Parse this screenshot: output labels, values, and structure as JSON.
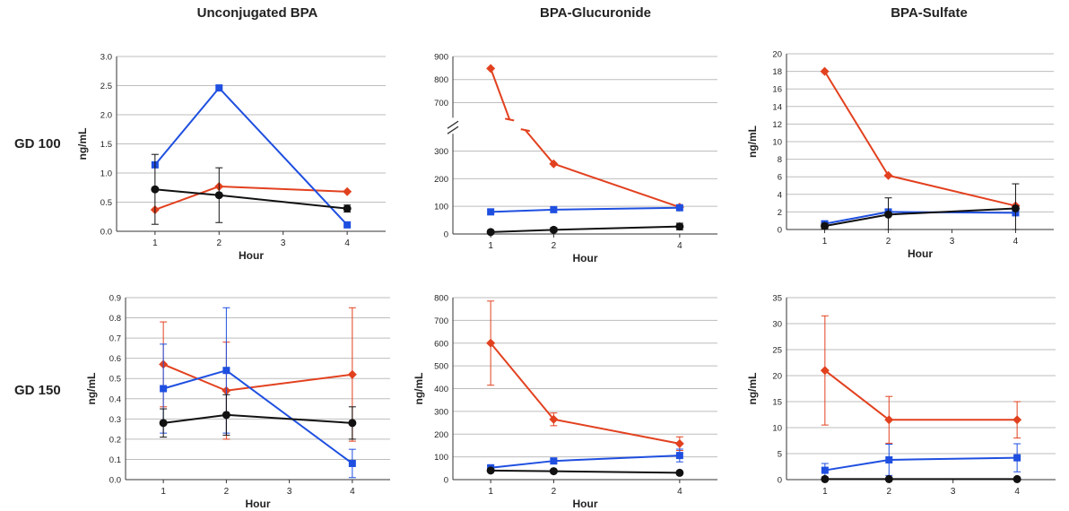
{
  "column_titles": [
    "Unconjugated BPA",
    "BPA-Glucuronide",
    "BPA-Sulfate"
  ],
  "row_labels": [
    "GD 100",
    "GD 150"
  ],
  "colors": {
    "red": "#e2411f",
    "blue": "#1f4fe0",
    "black": "#111111"
  },
  "chart_data": [
    {
      "type": "line",
      "title": "Unconjugated BPA",
      "row": "GD 100",
      "xlabel": "Hour",
      "ylabel": "ng/mL",
      "x": [
        1,
        2,
        3,
        4
      ],
      "xticks": [
        1,
        2,
        3,
        4
      ],
      "xlim": [
        0.4,
        4.6
      ],
      "ylim": [
        0,
        3.0
      ],
      "yticks": [
        0.0,
        0.5,
        1.0,
        1.5,
        2.0,
        2.5,
        3.0
      ],
      "yformat": 1,
      "grid": true,
      "series": [
        {
          "color": "red",
          "marker": "diamond",
          "x": [
            1,
            2,
            4
          ],
          "values": [
            0.37,
            0.77,
            0.68
          ],
          "error": [
            0,
            0,
            0
          ]
        },
        {
          "color": "blue",
          "marker": "square",
          "x": [
            1,
            2,
            4
          ],
          "values": [
            1.14,
            2.46,
            0.11
          ],
          "error": [
            0,
            0,
            0
          ]
        },
        {
          "color": "black",
          "marker": "circle",
          "x": [
            1,
            2,
            4
          ],
          "values": [
            0.72,
            0.62,
            0.39
          ],
          "error": [
            0.6,
            0.47,
            0.06
          ]
        }
      ]
    },
    {
      "type": "line",
      "title": "BPA-Glucuronide",
      "row": "GD 100",
      "xlabel": "Hour",
      "ylabel": "",
      "x": [
        1,
        2,
        3,
        4
      ],
      "xticks": [
        1,
        2,
        4
      ],
      "xlim": [
        0.4,
        4.6
      ],
      "ylim": [
        0,
        900
      ],
      "yticks": [
        0,
        100,
        200,
        300,
        700,
        800,
        900
      ],
      "yformat": 0,
      "axis_break": {
        "lower": [
          0,
          350
        ],
        "upper": [
          650,
          900
        ]
      },
      "grid": true,
      "series": [
        {
          "color": "red",
          "marker": "diamond",
          "x": [
            1,
            2,
            4
          ],
          "values": [
            848,
            254,
            97
          ],
          "error": [
            0,
            0,
            0
          ]
        },
        {
          "color": "blue",
          "marker": "square",
          "x": [
            1,
            2,
            4
          ],
          "values": [
            80,
            88,
            95
          ],
          "error": [
            0,
            0,
            0
          ]
        },
        {
          "color": "black",
          "marker": "circle",
          "x": [
            1,
            2,
            4
          ],
          "values": [
            7,
            15,
            27
          ],
          "error": [
            5,
            8,
            12
          ]
        }
      ]
    },
    {
      "type": "line",
      "title": "BPA-Sulfate",
      "row": "GD 100",
      "xlabel": "Hour",
      "ylabel": "ng/mL",
      "x": [
        1,
        2,
        3,
        4
      ],
      "xticks": [
        1,
        2,
        3,
        4
      ],
      "xlim": [
        0.4,
        4.6
      ],
      "ylim": [
        0,
        20
      ],
      "yticks": [
        0,
        2,
        4,
        6,
        8,
        10,
        12,
        14,
        16,
        18,
        20
      ],
      "yformat": 0,
      "grid": true,
      "series": [
        {
          "color": "red",
          "marker": "diamond",
          "x": [
            1,
            2,
            4
          ],
          "values": [
            18.0,
            6.15,
            2.7
          ],
          "error": [
            0,
            0,
            0
          ]
        },
        {
          "color": "blue",
          "marker": "square",
          "x": [
            1,
            2,
            4
          ],
          "values": [
            0.65,
            2.0,
            1.9
          ],
          "error": [
            0,
            0,
            0
          ]
        },
        {
          "color": "black",
          "marker": "circle",
          "x": [
            1,
            2,
            4
          ],
          "values": [
            0.4,
            1.7,
            2.4
          ],
          "error": [
            0.3,
            1.9,
            2.8
          ]
        }
      ]
    },
    {
      "type": "line",
      "title": "Unconjugated BPA",
      "row": "GD 150",
      "xlabel": "Hour",
      "ylabel": "ng/mL",
      "x": [
        1,
        2,
        3,
        4
      ],
      "xticks": [
        1,
        2,
        3,
        4
      ],
      "xlim": [
        0.4,
        4.6
      ],
      "ylim": [
        0,
        0.9
      ],
      "yticks": [
        0.0,
        0.1,
        0.2,
        0.3,
        0.4,
        0.5,
        0.6,
        0.7,
        0.8,
        0.9
      ],
      "yformat": 1,
      "grid": true,
      "series": [
        {
          "color": "red",
          "marker": "diamond",
          "x": [
            1,
            2,
            4
          ],
          "values": [
            0.57,
            0.44,
            0.52
          ],
          "error": [
            0.21,
            0.24,
            0.33
          ]
        },
        {
          "color": "blue",
          "marker": "square",
          "x": [
            1,
            2,
            4
          ],
          "values": [
            0.45,
            0.54,
            0.08
          ],
          "error": [
            0.22,
            0.31,
            0.07
          ]
        },
        {
          "color": "black",
          "marker": "circle",
          "x": [
            1,
            2,
            4
          ],
          "values": [
            0.28,
            0.32,
            0.28
          ],
          "error": [
            0.07,
            0.1,
            0.08
          ]
        }
      ]
    },
    {
      "type": "line",
      "title": "BPA-Glucuronide",
      "row": "GD 150",
      "xlabel": "Hour",
      "ylabel": "ng/mL",
      "x": [
        1,
        2,
        3,
        4
      ],
      "xticks": [
        1,
        2,
        4
      ],
      "xlim": [
        0.4,
        4.6
      ],
      "ylim": [
        0,
        800
      ],
      "yticks": [
        0,
        100,
        200,
        300,
        400,
        500,
        600,
        700,
        800
      ],
      "yformat": 0,
      "grid": true,
      "series": [
        {
          "color": "red",
          "marker": "diamond",
          "x": [
            1,
            2,
            4
          ],
          "values": [
            600,
            265,
            158
          ],
          "error": [
            185,
            28,
            30
          ]
        },
        {
          "color": "blue",
          "marker": "square",
          "x": [
            1,
            2,
            4
          ],
          "values": [
            52,
            82,
            106
          ],
          "error": [
            8,
            10,
            28
          ]
        },
        {
          "color": "black",
          "marker": "circle",
          "x": [
            1,
            2,
            4
          ],
          "values": [
            40,
            37,
            30
          ],
          "error": [
            3,
            3,
            3
          ]
        }
      ]
    },
    {
      "type": "line",
      "title": "BPA-Sulfate",
      "row": "GD 150",
      "xlabel": "",
      "ylabel": "ng/mL",
      "x": [
        1,
        2,
        3,
        4
      ],
      "xticks": [
        1,
        2,
        3,
        4
      ],
      "xlim": [
        0.4,
        4.6
      ],
      "ylim": [
        0,
        35
      ],
      "yticks": [
        0,
        5,
        10,
        15,
        20,
        25,
        30,
        35
      ],
      "yformat": 0,
      "grid": true,
      "series": [
        {
          "color": "red",
          "marker": "diamond",
          "x": [
            1,
            2,
            4
          ],
          "values": [
            21.0,
            11.5,
            11.5
          ],
          "error": [
            10.5,
            4.5,
            3.5
          ]
        },
        {
          "color": "blue",
          "marker": "square",
          "x": [
            1,
            2,
            4
          ],
          "values": [
            1.8,
            3.8,
            4.2
          ],
          "error": [
            1.3,
            3.0,
            2.7
          ]
        },
        {
          "color": "black",
          "marker": "circle",
          "x": [
            1,
            2,
            4
          ],
          "values": [
            0.1,
            0.1,
            0.1
          ],
          "error": [
            0,
            0,
            0
          ]
        }
      ]
    }
  ]
}
